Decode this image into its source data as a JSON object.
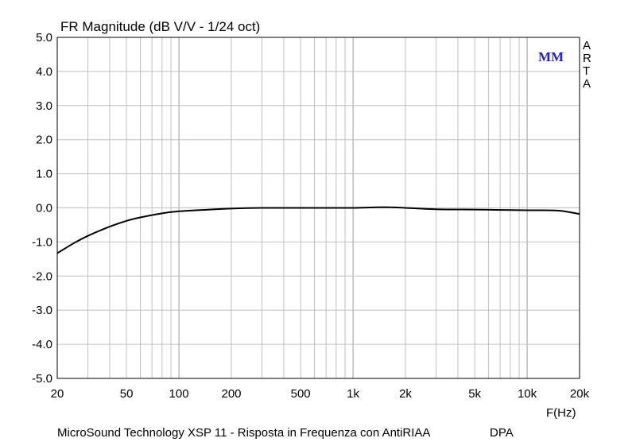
{
  "chart_data": {
    "type": "line",
    "title": "FR Magnitude (dB V/V - 1/24 oct)",
    "xlabel": "F(Hz)",
    "ylabel": "",
    "x_scale": "log",
    "xlim": [
      20,
      20000
    ],
    "ylim": [
      -5.0,
      5.0
    ],
    "grid": true,
    "x_tick_labels": [
      {
        "value": 20,
        "label": "20"
      },
      {
        "value": 50,
        "label": "50"
      },
      {
        "value": 100,
        "label": "100"
      },
      {
        "value": 200,
        "label": "200"
      },
      {
        "value": 500,
        "label": "500"
      },
      {
        "value": 1000,
        "label": "1k"
      },
      {
        "value": 2000,
        "label": "2k"
      },
      {
        "value": 5000,
        "label": "5k"
      },
      {
        "value": 10000,
        "label": "10k"
      },
      {
        "value": 20000,
        "label": "20k"
      }
    ],
    "y_ticks": [
      5.0,
      4.0,
      3.0,
      2.0,
      1.0,
      0.0,
      -1.0,
      -2.0,
      -3.0,
      -4.0,
      -5.0
    ],
    "y_tick_labels": [
      "5.0",
      "4.0",
      "3.0",
      "2.0",
      "1.0",
      "0.0",
      "-1.0",
      "-2.0",
      "-3.0",
      "-4.0",
      "-5.0"
    ],
    "series": [
      {
        "color": "#000000",
        "x": [
          20,
          25,
          30,
          40,
          50,
          60,
          80,
          100,
          150,
          200,
          300,
          500,
          700,
          1000,
          1500,
          2000,
          3000,
          5000,
          7000,
          10000,
          15000,
          20000
        ],
        "y": [
          -1.33,
          -1.03,
          -0.82,
          -0.55,
          -0.38,
          -0.28,
          -0.16,
          -0.1,
          -0.05,
          -0.02,
          0.0,
          0.0,
          0.0,
          0.0,
          0.02,
          0.0,
          -0.04,
          -0.05,
          -0.06,
          -0.07,
          -0.08,
          -0.18
        ]
      }
    ],
    "badge": "MM",
    "watermark_letters": [
      "A",
      "R",
      "T",
      "A"
    ],
    "caption": "MicroSound Technology XSP 11 - Risposta in Frequenza con AntiRIAA",
    "caption_tag": "DPA",
    "colors": {
      "badge": "#1f1fd0",
      "grid": "#c0c0c0",
      "line": "#000000"
    }
  }
}
